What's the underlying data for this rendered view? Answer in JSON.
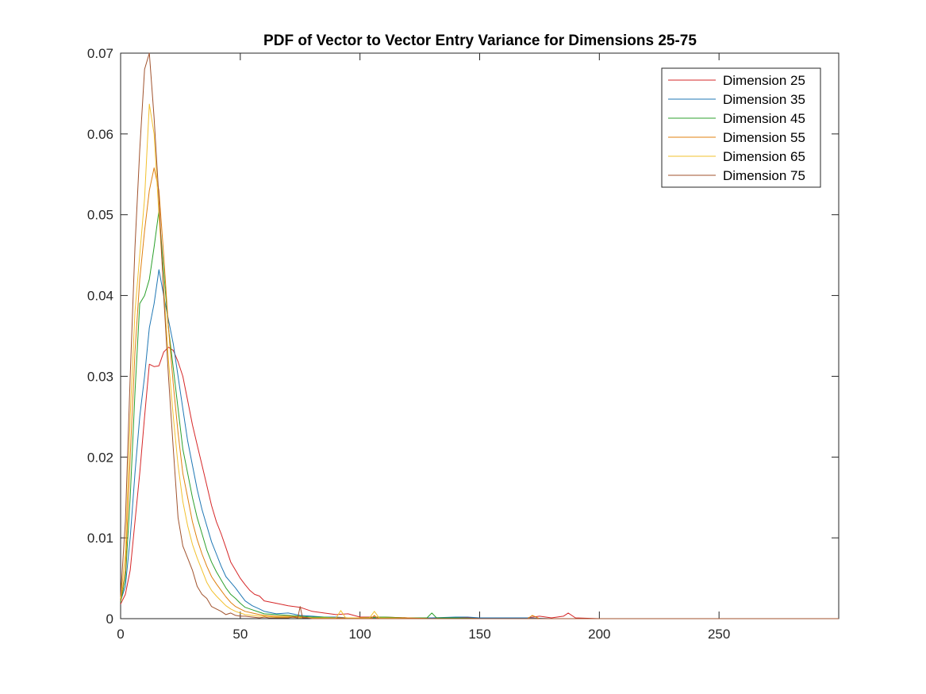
{
  "chart_data": {
    "type": "line",
    "title": "PDF of Vector to Vector Entry Variance for Dimensions 25-75",
    "xlabel": "",
    "ylabel": "",
    "xlim": [
      0,
      300
    ],
    "ylim": [
      0,
      0.07
    ],
    "x_ticks": [
      0,
      50,
      100,
      150,
      200,
      250
    ],
    "x_tick_labels": [
      "0",
      "50",
      "100",
      "150",
      "200",
      "250"
    ],
    "y_ticks": [
      0,
      0.01,
      0.02,
      0.03,
      0.04,
      0.05,
      0.06,
      0.07
    ],
    "y_tick_labels": [
      "0",
      "0.01",
      "0.02",
      "0.03",
      "0.04",
      "0.05",
      "0.06",
      "0.07"
    ],
    "grid": false,
    "legend_position": "top-right",
    "series": [
      {
        "name": "Dimension 25",
        "color": "#d62728",
        "x": [
          0,
          2,
          4,
          6,
          8,
          10,
          12,
          14,
          16,
          18,
          20,
          22,
          24,
          26,
          28,
          30,
          32,
          34,
          36,
          38,
          40,
          42,
          44,
          46,
          48,
          50,
          52,
          54,
          56,
          58,
          60,
          65,
          70,
          75,
          80,
          85,
          90,
          95,
          100,
          110,
          120,
          130,
          140,
          150,
          160,
          170,
          175,
          180,
          185,
          187,
          190,
          200,
          210,
          220,
          230,
          240,
          250,
          260,
          270,
          280,
          290,
          300
        ],
        "y": [
          0.0018,
          0.003,
          0.006,
          0.012,
          0.018,
          0.025,
          0.0315,
          0.0312,
          0.0313,
          0.033,
          0.0336,
          0.0332,
          0.0318,
          0.03,
          0.027,
          0.024,
          0.0215,
          0.019,
          0.0165,
          0.014,
          0.012,
          0.0105,
          0.0088,
          0.007,
          0.006,
          0.005,
          0.0042,
          0.0035,
          0.003,
          0.0028,
          0.0022,
          0.0019,
          0.0016,
          0.0014,
          0.0009,
          0.0007,
          0.0005,
          0.0006,
          0.0002,
          0.0002,
          0.0001,
          0.0001,
          0.0001,
          0.0001,
          0.0001,
          0.0001,
          0.0003,
          0.0001,
          0.0003,
          0.0007,
          0.0001,
          0.0,
          0.0,
          0.0,
          0.0,
          0.0,
          0.0,
          0.0,
          0.0,
          0.0,
          0.0,
          0.0
        ]
      },
      {
        "name": "Dimension 35",
        "color": "#1f77b4",
        "x": [
          0,
          2,
          4,
          6,
          8,
          10,
          12,
          14,
          16,
          18,
          20,
          22,
          24,
          26,
          28,
          30,
          32,
          34,
          36,
          38,
          40,
          42,
          44,
          46,
          48,
          50,
          52,
          55,
          58,
          60,
          65,
          70,
          75,
          80,
          85,
          90,
          95,
          100,
          110,
          120,
          130,
          140,
          145,
          150,
          160,
          170,
          180,
          190,
          200,
          210,
          220,
          230,
          240,
          250,
          260,
          270,
          280,
          290,
          300
        ],
        "y": [
          0.0022,
          0.004,
          0.01,
          0.018,
          0.025,
          0.03,
          0.036,
          0.039,
          0.0432,
          0.04,
          0.037,
          0.034,
          0.03,
          0.026,
          0.022,
          0.019,
          0.016,
          0.0135,
          0.0115,
          0.0095,
          0.008,
          0.0065,
          0.0052,
          0.0045,
          0.0038,
          0.003,
          0.0022,
          0.0016,
          0.0012,
          0.0009,
          0.0006,
          0.0007,
          0.0004,
          0.0003,
          0.0002,
          0.0002,
          0.0001,
          0.0001,
          0.0001,
          0.0001,
          0.0001,
          0.0002,
          0.0002,
          0.0001,
          0.0001,
          0.0001,
          0.0,
          0.0,
          0.0,
          0.0,
          0.0,
          0.0,
          0.0,
          0.0,
          0.0,
          0.0,
          0.0,
          0.0,
          0.0
        ]
      },
      {
        "name": "Dimension 45",
        "color": "#2ca02c",
        "x": [
          0,
          2,
          4,
          6,
          8,
          10,
          12,
          14,
          16,
          18,
          20,
          22,
          24,
          26,
          28,
          30,
          32,
          34,
          36,
          38,
          40,
          42,
          44,
          46,
          48,
          50,
          52,
          55,
          58,
          60,
          65,
          70,
          75,
          80,
          85,
          90,
          95,
          100,
          110,
          120,
          128,
          130,
          132,
          140,
          150,
          160,
          170,
          180,
          190,
          200,
          210,
          220,
          230,
          240,
          250,
          260,
          270,
          280,
          290,
          300
        ],
        "y": [
          0.002,
          0.005,
          0.015,
          0.028,
          0.039,
          0.04,
          0.042,
          0.046,
          0.0505,
          0.043,
          0.036,
          0.031,
          0.026,
          0.021,
          0.018,
          0.015,
          0.0125,
          0.0105,
          0.0085,
          0.007,
          0.0058,
          0.0048,
          0.0038,
          0.003,
          0.0025,
          0.0019,
          0.0014,
          0.0011,
          0.0008,
          0.0006,
          0.0005,
          0.0004,
          0.0003,
          0.0002,
          0.0002,
          0.0001,
          0.0001,
          0.0001,
          0.0002,
          0.0001,
          0.0001,
          0.0007,
          0.0001,
          0.0001,
          0.0,
          0.0,
          0.0,
          0.0,
          0.0,
          0.0,
          0.0,
          0.0,
          0.0,
          0.0,
          0.0,
          0.0,
          0.0,
          0.0,
          0.0,
          0.0
        ]
      },
      {
        "name": "Dimension 55",
        "color": "#e0800f",
        "x": [
          0,
          2,
          4,
          6,
          8,
          10,
          12,
          14,
          16,
          18,
          20,
          22,
          24,
          26,
          28,
          30,
          32,
          34,
          36,
          38,
          40,
          42,
          44,
          46,
          48,
          50,
          52,
          55,
          58,
          60,
          65,
          70,
          75,
          80,
          85,
          90,
          95,
          100,
          105,
          106,
          107,
          110,
          120,
          130,
          140,
          150,
          160,
          170,
          172,
          175,
          180,
          190,
          200,
          210,
          220,
          230,
          240,
          250,
          260,
          270,
          280,
          290,
          300
        ],
        "y": [
          0.0022,
          0.006,
          0.02,
          0.033,
          0.042,
          0.048,
          0.053,
          0.0558,
          0.053,
          0.045,
          0.036,
          0.029,
          0.023,
          0.018,
          0.015,
          0.012,
          0.0098,
          0.008,
          0.0065,
          0.0052,
          0.0043,
          0.0035,
          0.0027,
          0.002,
          0.0015,
          0.0012,
          0.0009,
          0.0007,
          0.0005,
          0.0004,
          0.0003,
          0.0003,
          0.0002,
          0.0001,
          0.0001,
          0.0001,
          0.0001,
          0.0001,
          0.0001,
          0.0004,
          0.0001,
          0.0001,
          0.0001,
          0.0,
          0.0,
          0.0,
          0.0,
          0.0,
          0.0004,
          0.0,
          0.0,
          0.0,
          0.0,
          0.0,
          0.0,
          0.0,
          0.0,
          0.0,
          0.0,
          0.0,
          0.0,
          0.0,
          0.0
        ]
      },
      {
        "name": "Dimension 65",
        "color": "#f2c12e",
        "x": [
          0,
          2,
          4,
          6,
          8,
          10,
          12,
          14,
          16,
          18,
          20,
          22,
          24,
          26,
          28,
          30,
          32,
          34,
          36,
          38,
          40,
          42,
          44,
          46,
          48,
          50,
          52,
          55,
          58,
          60,
          65,
          70,
          75,
          80,
          85,
          90,
          92,
          94,
          100,
          104,
          106,
          108,
          110,
          120,
          130,
          140,
          150,
          160,
          170,
          180,
          190,
          200,
          210,
          220,
          230,
          240,
          250,
          260,
          270,
          280,
          290,
          300
        ],
        "y": [
          0.0025,
          0.008,
          0.025,
          0.038,
          0.045,
          0.052,
          0.0637,
          0.06,
          0.05,
          0.041,
          0.032,
          0.025,
          0.019,
          0.0145,
          0.0115,
          0.0092,
          0.0075,
          0.006,
          0.0045,
          0.0035,
          0.0028,
          0.0022,
          0.0016,
          0.0012,
          0.0009,
          0.0007,
          0.0005,
          0.0004,
          0.0003,
          0.0003,
          0.0002,
          0.0002,
          0.0001,
          0.0001,
          0.0001,
          0.0001,
          0.001,
          0.0001,
          0.0001,
          0.0001,
          0.0009,
          0.0001,
          0.0001,
          0.0,
          0.0,
          0.0,
          0.0,
          0.0,
          0.0,
          0.0,
          0.0,
          0.0,
          0.0,
          0.0,
          0.0,
          0.0,
          0.0,
          0.0,
          0.0,
          0.0,
          0.0,
          0.0
        ]
      },
      {
        "name": "Dimension 75",
        "color": "#a0522d",
        "x": [
          0,
          2,
          4,
          6,
          8,
          10,
          12,
          14,
          16,
          18,
          20,
          22,
          24,
          26,
          28,
          30,
          32,
          34,
          36,
          38,
          40,
          42,
          44,
          46,
          48,
          50,
          52,
          55,
          58,
          60,
          62,
          65,
          68,
          70,
          72,
          74,
          75,
          76,
          78,
          80,
          85,
          90,
          95,
          100,
          110,
          120,
          130,
          140,
          150,
          160,
          170,
          180,
          190,
          200,
          210,
          220,
          230,
          240,
          250,
          260,
          270,
          280,
          290,
          300
        ],
        "y": [
          0.0028,
          0.012,
          0.03,
          0.046,
          0.058,
          0.068,
          0.07,
          0.062,
          0.052,
          0.04,
          0.03,
          0.021,
          0.0125,
          0.009,
          0.0075,
          0.006,
          0.004,
          0.003,
          0.0025,
          0.0015,
          0.0012,
          0.0009,
          0.0005,
          0.0007,
          0.0004,
          0.0003,
          0.0003,
          0.0002,
          0.0001,
          0.0002,
          0.0001,
          0.0001,
          0.0001,
          0.0001,
          0.0002,
          0.0001,
          0.0015,
          0.0001,
          0.0001,
          0.0,
          0.0,
          0.0,
          0.0,
          0.0,
          0.0,
          0.0,
          0.0,
          0.0,
          0.0,
          0.0,
          0.0,
          0.0,
          0.0,
          0.0,
          0.0,
          0.0,
          0.0,
          0.0,
          0.0,
          0.0,
          0.0,
          0.0,
          0.0,
          0.0
        ]
      }
    ]
  }
}
